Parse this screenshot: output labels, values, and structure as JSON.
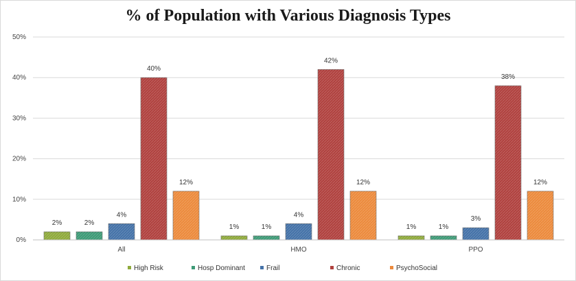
{
  "chart_data": {
    "type": "bar",
    "title": "% of Population with Various Diagnosis Types",
    "xlabel": "",
    "ylabel": "",
    "categories": [
      "All",
      "HMO",
      "PPO"
    ],
    "series": [
      {
        "name": "High Risk",
        "values": [
          2,
          1,
          1
        ],
        "labels": [
          "2%",
          "1%",
          "1%"
        ],
        "color": "#8faa3b"
      },
      {
        "name": "Hosp Dominant",
        "values": [
          2,
          1,
          1
        ],
        "labels": [
          "2%",
          "1%",
          "1%"
        ],
        "color": "#3d9a76"
      },
      {
        "name": "Frail",
        "values": [
          4,
          4,
          3
        ],
        "labels": [
          "4%",
          "4%",
          "3%"
        ],
        "color": "#4472a8"
      },
      {
        "name": "Chronic",
        "values": [
          40,
          42,
          38
        ],
        "labels": [
          "40%",
          "42%",
          "38%"
        ],
        "color": "#b0413e"
      },
      {
        "name": "PsychoSocial",
        "values": [
          12,
          12,
          12
        ],
        "labels": [
          "12%",
          "12%",
          "12%"
        ],
        "color": "#ec8a3c"
      }
    ],
    "ylim": [
      0,
      50
    ],
    "yticks": [
      0,
      10,
      20,
      30,
      40,
      50
    ],
    "ytick_labels": [
      "0%",
      "10%",
      "20%",
      "30%",
      "40%",
      "50%"
    ],
    "grid": true,
    "legend_position": "bottom"
  }
}
